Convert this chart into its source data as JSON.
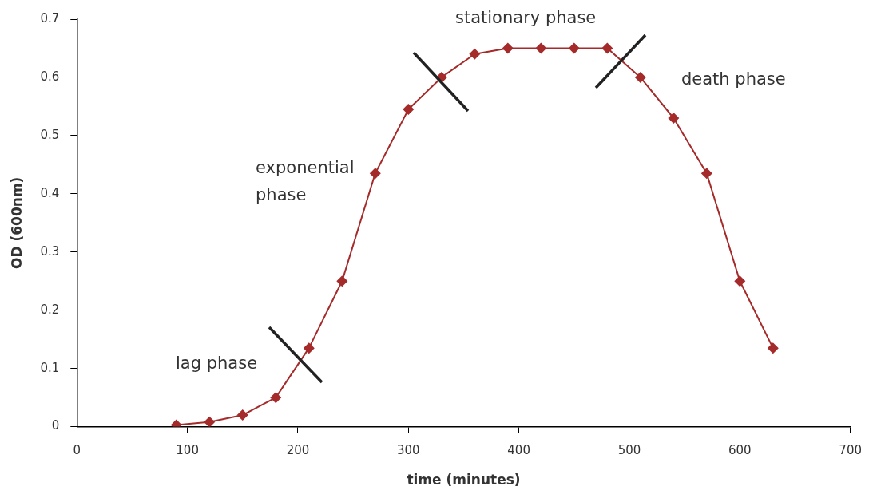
{
  "chart_data": {
    "type": "line",
    "xlabel": "time (minutes)",
    "ylabel": "OD (600nm)",
    "x": [
      90,
      120,
      150,
      180,
      210,
      240,
      270,
      300,
      330,
      360,
      390,
      420,
      450,
      480,
      510,
      540,
      570,
      600,
      630
    ],
    "series": [
      {
        "color": "#a52a2a",
        "values": [
          0.003,
          0.008,
          0.02,
          0.05,
          0.135,
          0.25,
          0.435,
          0.545,
          0.6,
          0.64,
          0.65,
          0.65,
          0.65,
          0.65,
          0.6,
          0.53,
          0.435,
          0.25,
          0.135
        ]
      }
    ],
    "xlim": [
      0,
      700
    ],
    "xticks": [
      0,
      100,
      200,
      300,
      400,
      500,
      600,
      700
    ],
    "ylim": [
      0,
      0.7
    ],
    "yticks": [
      0,
      0.1,
      0.2,
      0.3,
      0.4,
      0.5,
      0.6,
      0.7
    ],
    "grid": false,
    "legend": false,
    "marker": "diamond",
    "line_style": "solid",
    "annotations": [
      "lag phase",
      "exponential phase",
      "stationary phase",
      "death phase"
    ]
  }
}
